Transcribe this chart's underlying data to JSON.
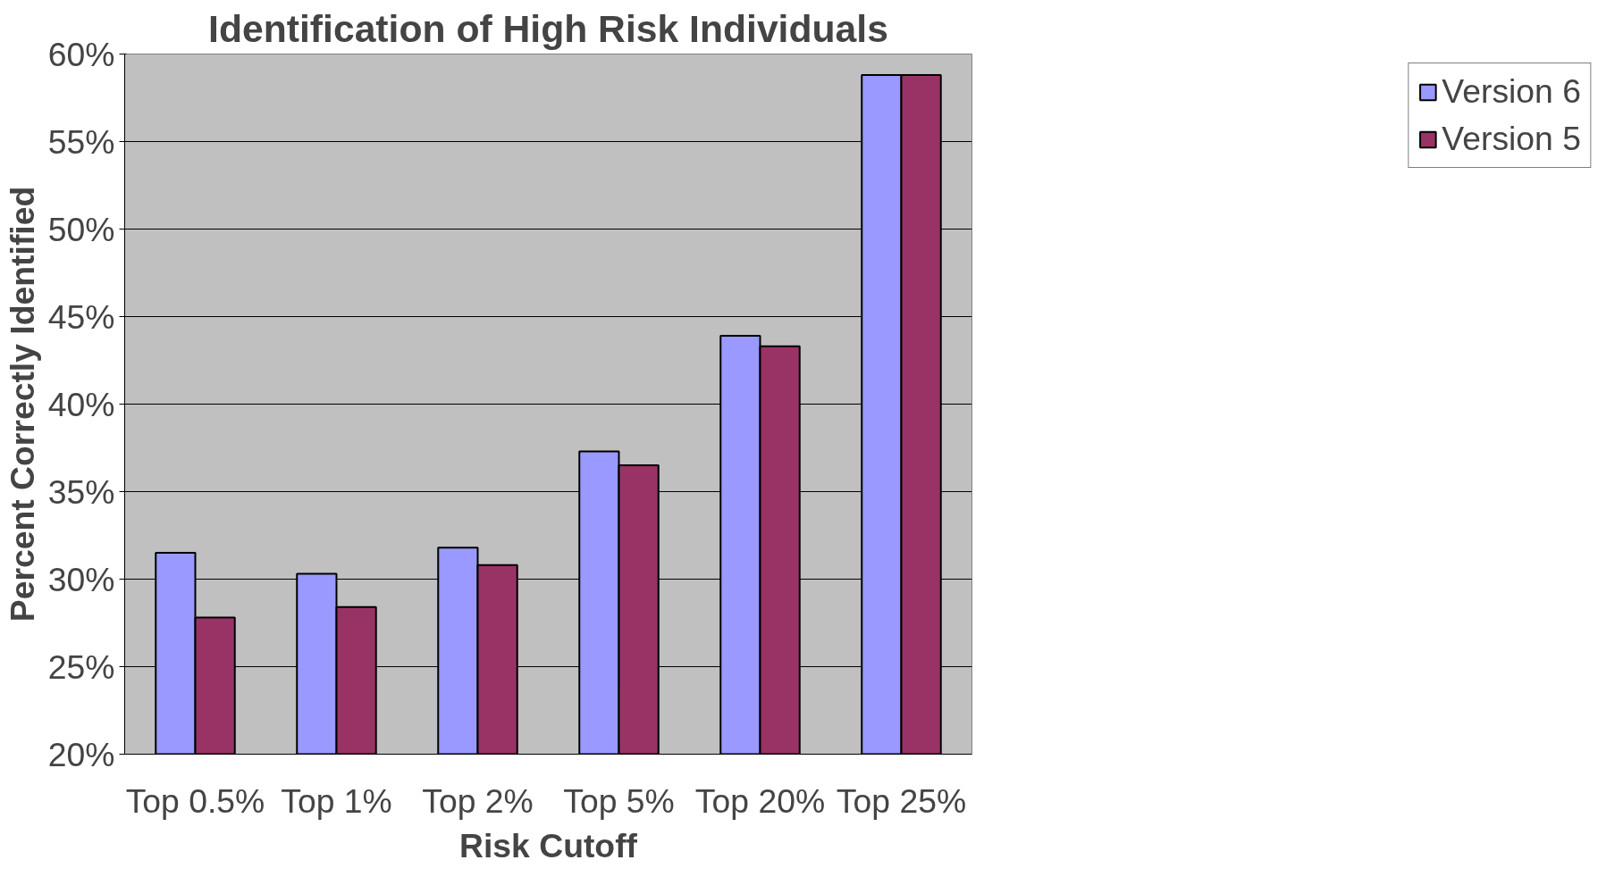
{
  "chart_data": {
    "type": "bar",
    "title": "Identification of High Risk Individuals",
    "xlabel": "Risk Cutoff",
    "ylabel": "Percent Correctly Identified",
    "categories": [
      "Top 0.5%",
      "Top 1%",
      "Top 2%",
      "Top 5%",
      "Top 20%",
      "Top 25%"
    ],
    "series": [
      {
        "name": "Version 6",
        "color": "#9999ff",
        "values": [
          31.5,
          30.3,
          31.8,
          37.3,
          43.9,
          58.8
        ]
      },
      {
        "name": "Version 5",
        "color": "#993366",
        "values": [
          27.8,
          28.4,
          30.8,
          36.5,
          43.3,
          58.8
        ]
      }
    ],
    "ylim": [
      20,
      60
    ],
    "yticks": [
      {
        "value": 20,
        "label": "20%"
      },
      {
        "value": 25,
        "label": "25%"
      },
      {
        "value": 30,
        "label": "30%"
      },
      {
        "value": 35,
        "label": "35%"
      },
      {
        "value": 40,
        "label": "40%"
      },
      {
        "value": 45,
        "label": "45%"
      },
      {
        "value": 50,
        "label": "50%"
      },
      {
        "value": 55,
        "label": "55%"
      },
      {
        "value": 60,
        "label": "60%"
      }
    ],
    "grid": "y",
    "legend": "right"
  }
}
